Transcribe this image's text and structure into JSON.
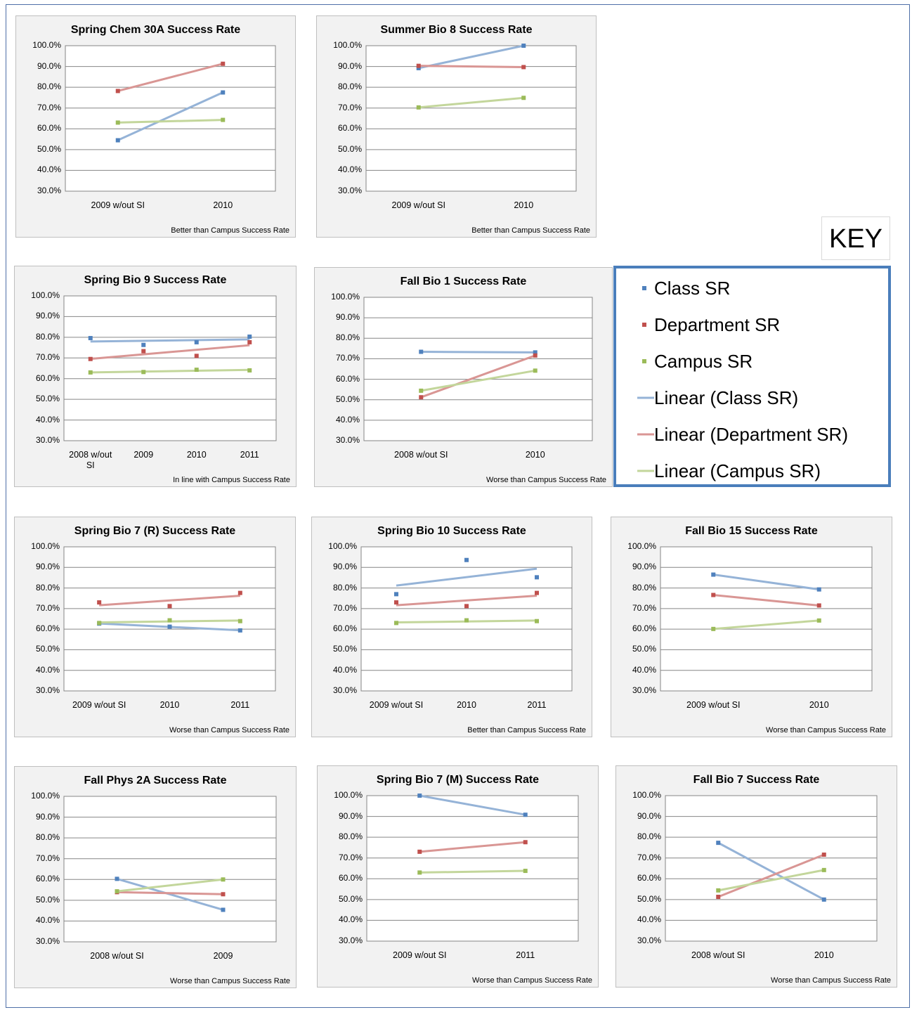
{
  "chart_data": [
    {
      "type": "line",
      "title": "Spring Chem 30A Success Rate",
      "note": "Better than Campus Success Rate",
      "categories": [
        "2009 w/out SI",
        "2010"
      ],
      "series": [
        {
          "color": "#4f81bd",
          "trend_color": "#95b3d7",
          "values": [
            54.5,
            77.5
          ]
        },
        {
          "color": "#c0504d",
          "trend_color": "#d99694",
          "values": [
            78.2,
            91.3
          ]
        },
        {
          "color": "#9bbb59",
          "trend_color": "#c3d69b",
          "values": [
            63.0,
            64.3
          ]
        }
      ],
      "ylim": [
        30,
        100
      ],
      "grid": true,
      "trendline": "linear",
      "yticks": [
        {
          "value": 30,
          "label": "30.0%"
        },
        {
          "value": 40,
          "label": "40.0%"
        },
        {
          "value": 50,
          "label": "50.0%"
        },
        {
          "value": 60,
          "label": "60.0%"
        },
        {
          "value": 70,
          "label": "70.0%"
        },
        {
          "value": 80,
          "label": "80.0%"
        },
        {
          "value": 90,
          "label": "90.0%"
        },
        {
          "value": 100,
          "label": "100.0%"
        }
      ]
    },
    {
      "type": "line",
      "title": "Summer Bio 8 Success Rate",
      "note": "Better than Campus Success Rate",
      "categories": [
        "2009 w/out SI",
        "2010"
      ],
      "series": [
        {
          "color": "#4f81bd",
          "trend_color": "#95b3d7",
          "values": [
            89.2,
            100
          ]
        },
        {
          "color": "#c0504d",
          "trend_color": "#d99694",
          "values": [
            90.3,
            89.7
          ]
        },
        {
          "color": "#9bbb59",
          "trend_color": "#c3d69b",
          "values": [
            70.3,
            74.9
          ]
        }
      ],
      "ylim": [
        30,
        100
      ],
      "grid": true,
      "trendline": "linear",
      "yticks": [
        {
          "value": 30,
          "label": "30.0%"
        },
        {
          "value": 40,
          "label": "40.0%"
        },
        {
          "value": 50,
          "label": "50.0%"
        },
        {
          "value": 60,
          "label": "60.0%"
        },
        {
          "value": 70,
          "label": "70.0%"
        },
        {
          "value": 80,
          "label": "80.0%"
        },
        {
          "value": 90,
          "label": "90.0%"
        },
        {
          "value": 100,
          "label": "100.0%"
        }
      ]
    },
    {
      "type": "line",
      "title": "Spring Bio 9 Success Rate",
      "note": "In line with Campus Success Rate",
      "categories": [
        "2008 w/out SI",
        "2009",
        "2010",
        "2011"
      ],
      "series": [
        {
          "color": "#4f81bd",
          "trend_color": "#95b3d7",
          "values": [
            79.6,
            76.3,
            77.6,
            80.3
          ]
        },
        {
          "color": "#c0504d",
          "trend_color": "#d99694",
          "values": [
            69.5,
            73.3,
            71.0,
            77.6
          ]
        },
        {
          "color": "#9bbb59",
          "trend_color": "#c3d69b",
          "values": [
            63.0,
            63.2,
            64.3,
            64.0
          ]
        }
      ],
      "ylim": [
        30,
        100
      ],
      "grid": true,
      "trendline": "linear",
      "yticks": [
        {
          "value": 30,
          "label": "30.0%"
        },
        {
          "value": 40,
          "label": "40.0%"
        },
        {
          "value": 50,
          "label": "50.0%"
        },
        {
          "value": 60,
          "label": "60.0%"
        },
        {
          "value": 70,
          "label": "70.0%"
        },
        {
          "value": 80,
          "label": "80.0%"
        },
        {
          "value": 90,
          "label": "90.0%"
        },
        {
          "value": 100,
          "label": "100.0%"
        }
      ]
    },
    {
      "type": "line",
      "title": "Fall Bio 1 Success Rate",
      "note": "Worse than Campus Success Rate",
      "categories": [
        "2008 w/out SI",
        "2010"
      ],
      "series": [
        {
          "color": "#4f81bd",
          "trend_color": "#95b3d7",
          "values": [
            73.4,
            73.1
          ]
        },
        {
          "color": "#c0504d",
          "trend_color": "#d99694",
          "values": [
            51.2,
            71.6
          ]
        },
        {
          "color": "#9bbb59",
          "trend_color": "#c3d69b",
          "values": [
            54.4,
            64.2
          ]
        }
      ],
      "ylim": [
        30,
        100
      ],
      "grid": true,
      "trendline": "linear",
      "yticks": [
        {
          "value": 30,
          "label": "30.0%"
        },
        {
          "value": 40,
          "label": "40.0%"
        },
        {
          "value": 50,
          "label": "50.0%"
        },
        {
          "value": 60,
          "label": "60.0%"
        },
        {
          "value": 70,
          "label": "70.0%"
        },
        {
          "value": 80,
          "label": "80.0%"
        },
        {
          "value": 90,
          "label": "90.0%"
        },
        {
          "value": 100,
          "label": "100.0%"
        }
      ]
    },
    {
      "type": "line",
      "title": "Spring Bio 7 (R) Success Rate",
      "note": "Worse than Campus Success Rate",
      "categories": [
        "2009 w/out SI",
        "2010",
        "2011"
      ],
      "series": [
        {
          "color": "#4f81bd",
          "trend_color": "#95b3d7",
          "values": [
            62.7,
            61.2,
            59.4
          ]
        },
        {
          "color": "#c0504d",
          "trend_color": "#d99694",
          "values": [
            73.0,
            71.2,
            77.6
          ]
        },
        {
          "color": "#9bbb59",
          "trend_color": "#c3d69b",
          "values": [
            63.0,
            64.3,
            63.9
          ]
        }
      ],
      "ylim": [
        30,
        100
      ],
      "grid": true,
      "trendline": "linear",
      "yticks": [
        {
          "value": 30,
          "label": "30.0%"
        },
        {
          "value": 40,
          "label": "40.0%"
        },
        {
          "value": 50,
          "label": "50.0%"
        },
        {
          "value": 60,
          "label": "60.0%"
        },
        {
          "value": 70,
          "label": "70.0%"
        },
        {
          "value": 80,
          "label": "80.0%"
        },
        {
          "value": 90,
          "label": "90.0%"
        },
        {
          "value": 100,
          "label": "100.0%"
        }
      ]
    },
    {
      "type": "line",
      "title": "Spring Bio 10 Success Rate",
      "note": "Better than Campus Success Rate",
      "categories": [
        "2009 w/out SI",
        "2010",
        "2011"
      ],
      "series": [
        {
          "color": "#4f81bd",
          "trend_color": "#95b3d7",
          "values": [
            77.0,
            93.6,
            85.2
          ]
        },
        {
          "color": "#c0504d",
          "trend_color": "#d99694",
          "values": [
            73.0,
            71.2,
            77.6
          ]
        },
        {
          "color": "#9bbb59",
          "trend_color": "#c3d69b",
          "values": [
            63.0,
            64.3,
            63.9
          ]
        }
      ],
      "ylim": [
        30,
        100
      ],
      "grid": true,
      "trendline": "linear",
      "yticks": [
        {
          "value": 30,
          "label": "30.0%"
        },
        {
          "value": 40,
          "label": "40.0%"
        },
        {
          "value": 50,
          "label": "50.0%"
        },
        {
          "value": 60,
          "label": "60.0%"
        },
        {
          "value": 70,
          "label": "70.0%"
        },
        {
          "value": 80,
          "label": "80.0%"
        },
        {
          "value": 90,
          "label": "90.0%"
        },
        {
          "value": 100,
          "label": "100.0%"
        }
      ]
    },
    {
      "type": "line",
      "title": "Fall Bio 15 Success Rate",
      "note": "Worse than Campus Success Rate",
      "categories": [
        "2009 w/out SI",
        "2010"
      ],
      "series": [
        {
          "color": "#4f81bd",
          "trend_color": "#95b3d7",
          "values": [
            86.5,
            79.3
          ]
        },
        {
          "color": "#c0504d",
          "trend_color": "#d99694",
          "values": [
            76.6,
            71.5
          ]
        },
        {
          "color": "#9bbb59",
          "trend_color": "#c3d69b",
          "values": [
            60.1,
            64.2
          ]
        }
      ],
      "ylim": [
        30,
        100
      ],
      "grid": true,
      "trendline": "linear",
      "yticks": [
        {
          "value": 30,
          "label": "30.0%"
        },
        {
          "value": 40,
          "label": "40.0%"
        },
        {
          "value": 50,
          "label": "50.0%"
        },
        {
          "value": 60,
          "label": "60.0%"
        },
        {
          "value": 70,
          "label": "70.0%"
        },
        {
          "value": 80,
          "label": "80.0%"
        },
        {
          "value": 90,
          "label": "90.0%"
        },
        {
          "value": 100,
          "label": "100.0%"
        }
      ]
    },
    {
      "type": "line",
      "title": "Fall Phys 2A Success Rate",
      "note": "Worse than Campus Success Rate",
      "categories": [
        "2008 w/out SI",
        "2009"
      ],
      "series": [
        {
          "color": "#4f81bd",
          "trend_color": "#95b3d7",
          "values": [
            60.3,
            45.4
          ]
        },
        {
          "color": "#c0504d",
          "trend_color": "#d99694",
          "values": [
            53.9,
            52.9
          ]
        },
        {
          "color": "#9bbb59",
          "trend_color": "#c3d69b",
          "values": [
            54.3,
            60.0
          ]
        }
      ],
      "ylim": [
        30,
        100
      ],
      "grid": true,
      "trendline": "linear",
      "yticks": [
        {
          "value": 30,
          "label": "30.0%"
        },
        {
          "value": 40,
          "label": "40.0%"
        },
        {
          "value": 50,
          "label": "50.0%"
        },
        {
          "value": 60,
          "label": "60.0%"
        },
        {
          "value": 70,
          "label": "70.0%"
        },
        {
          "value": 80,
          "label": "80.0%"
        },
        {
          "value": 90,
          "label": "90.0%"
        },
        {
          "value": 100,
          "label": "100.0%"
        }
      ]
    },
    {
      "type": "line",
      "title": "Spring Bio 7 (M) Success Rate",
      "note": "Worse than Campus Success Rate",
      "categories": [
        "2009 w/out SI",
        "2011"
      ],
      "series": [
        {
          "color": "#4f81bd",
          "trend_color": "#95b3d7",
          "values": [
            100,
            90.8
          ]
        },
        {
          "color": "#c0504d",
          "trend_color": "#d99694",
          "values": [
            73.0,
            77.6
          ]
        },
        {
          "color": "#9bbb59",
          "trend_color": "#c3d69b",
          "values": [
            63.0,
            63.8
          ]
        }
      ],
      "ylim": [
        30,
        100
      ],
      "grid": true,
      "trendline": "linear",
      "yticks": [
        {
          "value": 30,
          "label": "30.0%"
        },
        {
          "value": 40,
          "label": "40.0%"
        },
        {
          "value": 50,
          "label": "50.0%"
        },
        {
          "value": 60,
          "label": "60.0%"
        },
        {
          "value": 70,
          "label": "70.0%"
        },
        {
          "value": 80,
          "label": "80.0%"
        },
        {
          "value": 90,
          "label": "90.0%"
        },
        {
          "value": 100,
          "label": "100.0%"
        }
      ]
    },
    {
      "type": "line",
      "title": "Fall Bio 7 Success Rate",
      "note": "Worse than Campus Success Rate",
      "categories": [
        "2008 w/out SI",
        "2010"
      ],
      "series": [
        {
          "color": "#4f81bd",
          "trend_color": "#95b3d7",
          "values": [
            77.3,
            50.0
          ]
        },
        {
          "color": "#c0504d",
          "trend_color": "#d99694",
          "values": [
            51.3,
            71.6
          ]
        },
        {
          "color": "#9bbb59",
          "trend_color": "#c3d69b",
          "values": [
            54.4,
            64.2
          ]
        }
      ],
      "ylim": [
        30,
        100
      ],
      "grid": true,
      "trendline": "linear",
      "yticks": [
        {
          "value": 30,
          "label": "30.0%"
        },
        {
          "value": 40,
          "label": "40.0%"
        },
        {
          "value": 50,
          "label": "50.0%"
        },
        {
          "value": 60,
          "label": "60.0%"
        },
        {
          "value": 70,
          "label": "70.0%"
        },
        {
          "value": 80,
          "label": "80.0%"
        },
        {
          "value": 90,
          "label": "90.0%"
        },
        {
          "value": 100,
          "label": "100.0%"
        }
      ]
    }
  ],
  "key": {
    "title": "KEY",
    "entries": [
      {
        "label": "Class SR",
        "color": "#4f81bd",
        "symbol": "marker"
      },
      {
        "label": "Department SR",
        "color": "#c0504d",
        "symbol": "marker"
      },
      {
        "label": "Campus SR",
        "color": "#9bbb59",
        "symbol": "marker"
      },
      {
        "label": "Linear (Class SR)",
        "color": "#95b3d7",
        "symbol": "line"
      },
      {
        "label": "Linear (Department SR)",
        "color": "#d99694",
        "symbol": "line"
      },
      {
        "label": "Linear (Campus SR)",
        "color": "#c3d69b",
        "symbol": "line"
      }
    ]
  }
}
